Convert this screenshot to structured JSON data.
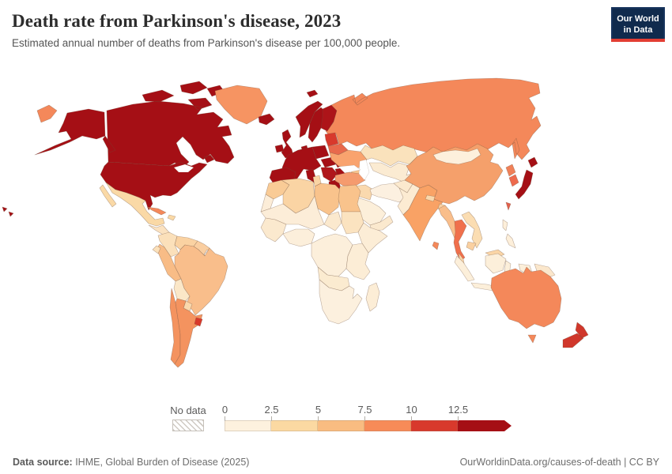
{
  "header": {
    "title": "Death rate from Parkinson's disease, 2023",
    "subtitle": "Estimated annual number of deaths from Parkinson's disease per 100,000 people.",
    "logo": {
      "line1": "Our World",
      "line2": "in Data",
      "bg_color": "#102a4d",
      "accent_color": "#e23d33"
    }
  },
  "footer": {
    "source_label": "Data source:",
    "source_text": " IHME, Global Burden of Disease (2025)",
    "right_text": "OurWorldinData.org/causes-of-death | CC BY"
  },
  "legend": {
    "no_data_label": "No data",
    "tick_labels": [
      "0",
      "2.5",
      "5",
      "7.5",
      "10",
      "12.5"
    ],
    "bin_colors": [
      "#FDF1DE",
      "#FBD9A2",
      "#F9BC81",
      "#F78B58",
      "#D8392C",
      "#A50F15"
    ]
  },
  "chart_data": {
    "type": "choropleth",
    "title": "Death rate from Parkinson's disease, 2023",
    "unit": "deaths per 100,000 people",
    "year": "2023",
    "legend_position": "bottom",
    "color_scale": {
      "bins": [
        {
          "range": "0-2.5",
          "color": "#FDF1DE"
        },
        {
          "range": "2.5-5",
          "color": "#FBD9A2"
        },
        {
          "range": "5-7.5",
          "color": "#F9BC81"
        },
        {
          "range": "7.5-10",
          "color": "#F78B58"
        },
        {
          "range": "10-12.5",
          "color": "#D8392C"
        },
        {
          "range": ">12.5",
          "color": "#A50F15"
        }
      ],
      "no_data": {
        "label": "No data",
        "style": "hatched"
      }
    },
    "regions": [
      {
        "id": "russia",
        "name": "Russia",
        "bin": "7.5-10",
        "color": "#F4885A"
      },
      {
        "id": "canada",
        "name": "Canada",
        "bin": ">12.5",
        "color": "#A50F15"
      },
      {
        "id": "usa",
        "name": "United States",
        "bin": ">12.5",
        "color": "#A50F15"
      },
      {
        "id": "chukotka_wrap",
        "name": "Russia (far east)",
        "bin": "7.5-10",
        "color": "#F4885A"
      },
      {
        "id": "greenland",
        "name": "Greenland",
        "bin": "7.5-10",
        "color": "#F69462"
      },
      {
        "id": "mexico",
        "name": "Mexico",
        "bin": "2.5-5",
        "color": "#FAD9A6"
      },
      {
        "id": "central_america",
        "name": "Central America",
        "bin": "0-2.5",
        "color": "#FBE2C0"
      },
      {
        "id": "cuba",
        "name": "Cuba",
        "bin": "7.5-10",
        "color": "#F4885A"
      },
      {
        "id": "hispaniola",
        "name": "Haiti / Dominican Rep.",
        "bin": "2.5-5",
        "color": "#FAD9A6"
      },
      {
        "id": "colombia",
        "name": "Colombia",
        "bin": "2.5-5",
        "color": "#FBE0BA"
      },
      {
        "id": "venezuela",
        "name": "Venezuela",
        "bin": "2.5-5",
        "color": "#FAD2A2"
      },
      {
        "id": "guyanas",
        "name": "Guyana / Suriname",
        "bin": "5-7.5",
        "color": "#FACEA0"
      },
      {
        "id": "french_guiana",
        "name": "French Guiana",
        "bin": "no-data",
        "color": "no-data"
      },
      {
        "id": "brazil",
        "name": "Brazil",
        "bin": "5-7.5",
        "color": "#F9BE8B"
      },
      {
        "id": "peru",
        "name": "Peru",
        "bin": "5-7.5",
        "color": "#F8BC86"
      },
      {
        "id": "ecuador",
        "name": "Ecuador",
        "bin": "2.5-5",
        "color": "#FBE0BA"
      },
      {
        "id": "bolivia",
        "name": "Bolivia",
        "bin": "2.5-5",
        "color": "#FBE7C8"
      },
      {
        "id": "paraguay",
        "name": "Paraguay",
        "bin": "2.5-5",
        "color": "#FAD8AC"
      },
      {
        "id": "chile",
        "name": "Chile",
        "bin": "7.5-10",
        "color": "#F4935F"
      },
      {
        "id": "argentina",
        "name": "Argentina",
        "bin": "7.5-10",
        "color": "#F4935F"
      },
      {
        "id": "uruguay",
        "name": "Uruguay",
        "bin": "10-12.5",
        "color": "#D8392C"
      },
      {
        "id": "iceland",
        "name": "Iceland",
        "bin": ">12.5",
        "color": "#A50F15"
      },
      {
        "id": "norway",
        "name": "Norway",
        "bin": ">12.5",
        "color": "#A50F15"
      },
      {
        "id": "sweden",
        "name": "Sweden",
        "bin": ">12.5",
        "color": "#A50F15"
      },
      {
        "id": "finland",
        "name": "Finland",
        "bin": ">12.5",
        "color": "#AD1419"
      },
      {
        "id": "denmark",
        "name": "Denmark",
        "bin": ">12.5",
        "color": "#A50F15"
      },
      {
        "id": "uk",
        "name": "United Kingdom",
        "bin": ">12.5",
        "color": "#A50F15"
      },
      {
        "id": "ireland",
        "name": "Ireland",
        "bin": ">12.5",
        "color": "#A50F15"
      },
      {
        "id": "west_europe",
        "name": "France / Germany / Central Europe",
        "bin": ">12.5",
        "color": "#A50F15"
      },
      {
        "id": "iberia",
        "name": "Spain / Portugal",
        "bin": ">12.5",
        "color": "#A50F15"
      },
      {
        "id": "italy",
        "name": "Italy",
        "bin": ">12.5",
        "color": "#A50F15"
      },
      {
        "id": "poland",
        "name": "Poland",
        "bin": ">12.5",
        "color": "#A50F15"
      },
      {
        "id": "hungary_czech",
        "name": "Hungary / Slovakia",
        "bin": ">12.5",
        "color": "#A50F15"
      },
      {
        "id": "romania",
        "name": "Romania",
        "bin": ">12.5",
        "color": "#AD1217"
      },
      {
        "id": "balkans",
        "name": "Western Balkans",
        "bin": ">12.5",
        "color": "#B0161B"
      },
      {
        "id": "bulgaria",
        "name": "Bulgaria",
        "bin": ">12.5",
        "color": "#A50F15"
      },
      {
        "id": "greece",
        "name": "Greece",
        "bin": ">12.5",
        "color": "#A50F15"
      },
      {
        "id": "baltics",
        "name": "Baltic states",
        "bin": "10-12.5",
        "color": "#D8392C"
      },
      {
        "id": "belarus",
        "name": "Belarus",
        "bin": "10-12.5",
        "color": "#E8694C"
      },
      {
        "id": "ukraine",
        "name": "Ukraine",
        "bin": "7.5-10",
        "color": "#F9A36E"
      },
      {
        "id": "kazakhstan",
        "name": "Kazakhstan",
        "bin": "2.5-5",
        "color": "#FAE2BC"
      },
      {
        "id": "centralasia",
        "name": "Central Asia",
        "bin": "0-2.5",
        "color": "#FBEBD2"
      },
      {
        "id": "caucasus",
        "name": "Georgia / Azerbaijan",
        "bin": "5-7.5",
        "color": "#F8C48E"
      },
      {
        "id": "armenia",
        "name": "Armenia",
        "bin": "10-12.5",
        "color": "#C8231F"
      },
      {
        "id": "turkey",
        "name": "Turkey",
        "bin": "7.5-10",
        "color": "#F59B6E"
      },
      {
        "id": "syria_iraq",
        "name": "Syria / Iraq",
        "bin": "2.5-5",
        "color": "#FAD9AE"
      },
      {
        "id": "israel_jordan",
        "name": "Israel / Jordan",
        "bin": "2.5-5",
        "color": "#FADFB8"
      },
      {
        "id": "saudi",
        "name": "Saudi Arabia",
        "bin": "0-2.5",
        "color": "#FCEFDA"
      },
      {
        "id": "yemen_oman",
        "name": "Yemen / Oman",
        "bin": "0-2.5",
        "color": "#FBE9CE"
      },
      {
        "id": "iran",
        "name": "Iran",
        "bin": "0-2.5",
        "color": "#FCF0E0"
      },
      {
        "id": "afghan",
        "name": "Afghanistan",
        "bin": "0-2.5",
        "color": "#FBE9CE"
      },
      {
        "id": "pakistan",
        "name": "Pakistan",
        "bin": "0-2.5",
        "color": "#FCEBD2"
      },
      {
        "id": "india",
        "name": "India",
        "bin": "7.5-10",
        "color": "#F9A265"
      },
      {
        "id": "nepal",
        "name": "Nepal",
        "bin": "2.5-5",
        "color": "#FAD8AC"
      },
      {
        "id": "bangladesh",
        "name": "Bangladesh",
        "bin": "2.5-5",
        "color": "#FAD0A0"
      },
      {
        "id": "srilanka",
        "name": "Sri Lanka",
        "bin": "7.5-10",
        "color": "#F4885A"
      },
      {
        "id": "china",
        "name": "China",
        "bin": "5-7.5",
        "color": "#F5A06B"
      },
      {
        "id": "mongolia",
        "name": "Mongolia",
        "bin": "0-2.5",
        "color": "#FDF0DC"
      },
      {
        "id": "nkorea",
        "name": "North Korea",
        "bin": "7.5-10",
        "color": "#F08058"
      },
      {
        "id": "skorea",
        "name": "South Korea",
        "bin": "10-12.5",
        "color": "#EE6A4D"
      },
      {
        "id": "japan",
        "name": "Japan",
        "bin": ">12.5",
        "color": "#A50F15"
      },
      {
        "id": "taiwan",
        "name": "Taiwan",
        "bin": "10-12.5",
        "color": "#E2604C"
      },
      {
        "id": "myanmar",
        "name": "Myanmar",
        "bin": "5-7.5",
        "color": "#F9BE8B"
      },
      {
        "id": "thailand",
        "name": "Thailand",
        "bin": "10-12.5",
        "color": "#F0704C"
      },
      {
        "id": "vietnam_laos",
        "name": "Vietnam / Laos",
        "bin": "2.5-5",
        "color": "#FBDDB2"
      },
      {
        "id": "cambodia",
        "name": "Cambodia",
        "bin": "2.5-5",
        "color": "#FAD0A0"
      },
      {
        "id": "malaysia",
        "name": "Malaysia",
        "bin": "2.5-5",
        "color": "#FAD5A6"
      },
      {
        "id": "indonesia",
        "name": "Indonesia",
        "bin": "0-2.5",
        "color": "#FCEFDA"
      },
      {
        "id": "philippines",
        "name": "Philippines",
        "bin": "0-2.5",
        "color": "#FDEFDA"
      },
      {
        "id": "png",
        "name": "Papua New Guinea",
        "bin": "0-2.5",
        "color": "#FBE7CC"
      },
      {
        "id": "australia",
        "name": "Australia",
        "bin": "7.5-10",
        "color": "#F4885A"
      },
      {
        "id": "nz",
        "name": "New Zealand",
        "bin": "10-12.5",
        "color": "#D0372B"
      },
      {
        "id": "morocco",
        "name": "Morocco",
        "bin": "5-7.5",
        "color": "#F9CB96"
      },
      {
        "id": "wsahara",
        "name": "Western Sahara",
        "bin": "0-2.5",
        "color": "#FCEDD8"
      },
      {
        "id": "algeria",
        "name": "Algeria",
        "bin": "5-7.5",
        "color": "#FAD4A4"
      },
      {
        "id": "tunisia",
        "name": "Tunisia",
        "bin": "5-7.5",
        "color": "#FAD4A4"
      },
      {
        "id": "libya",
        "name": "Libya",
        "bin": "5-7.5",
        "color": "#F9C38C"
      },
      {
        "id": "egypt",
        "name": "Egypt",
        "bin": "5-7.5",
        "color": "#F9C38C"
      },
      {
        "id": "sahel",
        "name": "Mauritania / Mali / Niger",
        "bin": "0-2.5",
        "color": "#FCEDD8"
      },
      {
        "id": "chad",
        "name": "Chad",
        "bin": "0-2.5",
        "color": "#FBE9CE"
      },
      {
        "id": "sudan",
        "name": "Sudan",
        "bin": "2.5-5",
        "color": "#FBE3C0"
      },
      {
        "id": "wafrica",
        "name": "West Africa",
        "bin": "0-2.5",
        "color": "#FBE9CE"
      },
      {
        "id": "gulf_guinea",
        "name": "Nigeria / Gulf of Guinea",
        "bin": "0-2.5",
        "color": "#FCEFDB"
      },
      {
        "id": "horn",
        "name": "Ethiopia / Somalia",
        "bin": "0-2.5",
        "color": "#FCEDD6"
      },
      {
        "id": "congo",
        "name": "DR Congo / Central Africa",
        "bin": "0-2.5",
        "color": "#FCEFDB"
      },
      {
        "id": "eastafrica",
        "name": "Kenya / Tanzania",
        "bin": "0-2.5",
        "color": "#FCEDD6"
      },
      {
        "id": "angola_zambia",
        "name": "Angola / Zambia",
        "bin": "0-2.5",
        "color": "#FBEBD0"
      },
      {
        "id": "southern_africa",
        "name": "Southern Africa",
        "bin": "0-2.5",
        "color": "#FCF0DE"
      },
      {
        "id": "madagascar",
        "name": "Madagascar",
        "bin": "0-2.5",
        "color": "#FCEDD6"
      }
    ]
  }
}
